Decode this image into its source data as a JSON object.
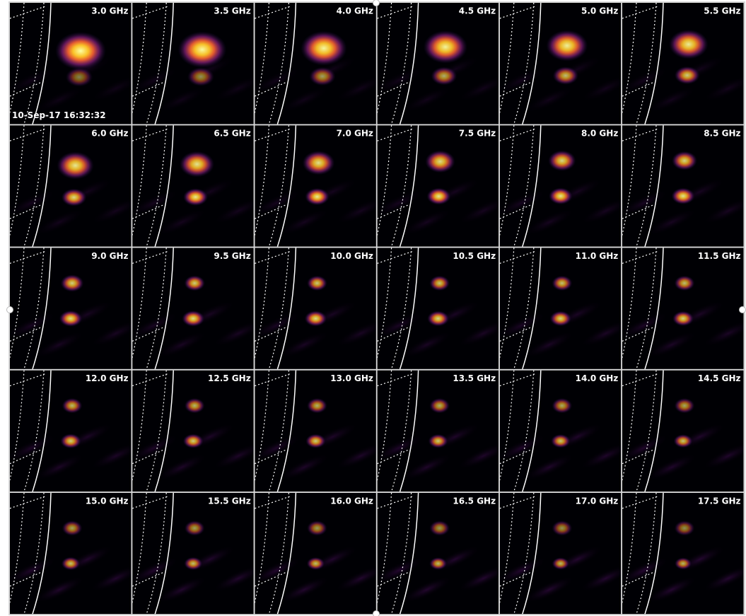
{
  "timestamp": "10-Sep-17 16:32:32",
  "panels": [
    {
      "label": "3.0 GHz"
    },
    {
      "label": "3.5 GHz"
    },
    {
      "label": "4.0 GHz"
    },
    {
      "label": "4.5 GHz"
    },
    {
      "label": "5.0 GHz"
    },
    {
      "label": "5.5 GHz"
    },
    {
      "label": "6.0 GHz"
    },
    {
      "label": "6.5 GHz"
    },
    {
      "label": "7.0 GHz"
    },
    {
      "label": "7.5 GHz"
    },
    {
      "label": "8.0 GHz"
    },
    {
      "label": "8.5 GHz"
    },
    {
      "label": "9.0 GHz"
    },
    {
      "label": "9.5 GHz"
    },
    {
      "label": "10.0 GHz"
    },
    {
      "label": "10.5 GHz"
    },
    {
      "label": "11.0 GHz"
    },
    {
      "label": "11.5 GHz"
    },
    {
      "label": "12.0 GHz"
    },
    {
      "label": "12.5 GHz"
    },
    {
      "label": "13.0 GHz"
    },
    {
      "label": "13.5 GHz"
    },
    {
      "label": "14.0 GHz"
    },
    {
      "label": "14.5 GHz"
    },
    {
      "label": "15.0 GHz"
    },
    {
      "label": "15.5 GHz"
    },
    {
      "label": "16.0 GHz"
    },
    {
      "label": "16.5 GHz"
    },
    {
      "label": "17.0 GHz"
    },
    {
      "label": "17.5 GHz"
    }
  ]
}
